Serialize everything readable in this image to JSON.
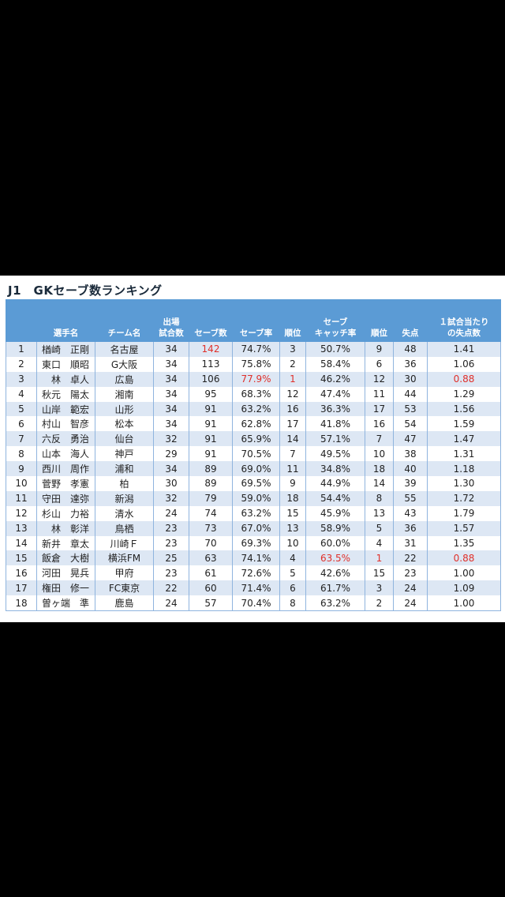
{
  "title": "J1　GKセーブ数ランキング",
  "headers": {
    "rank": "",
    "player": "選手名",
    "team": "チーム名",
    "games_1": "出場",
    "games_2": "試合数",
    "saves": "セーブ数",
    "save_rate": "セーブ率",
    "save_rate_rank": "順位",
    "catch_rate_1": "セーブ",
    "catch_rate_2": "キャッチ率",
    "catch_rate_rank": "順位",
    "goals_against": "失点",
    "gapg_1": "１試合当たり",
    "gapg_2": "の失点数"
  },
  "rows": [
    {
      "rank": "1",
      "player": "楢崎　正剛",
      "team": "名古屋",
      "games": "34",
      "saves": "142",
      "save_rate": "74.7%",
      "save_rate_rank": "3",
      "catch_rate": "50.7%",
      "catch_rate_rank": "9",
      "goals_against": "48",
      "gapg": "1.41"
    },
    {
      "rank": "2",
      "player": "東口　順昭",
      "team": "G大阪",
      "games": "34",
      "saves": "113",
      "save_rate": "75.8%",
      "save_rate_rank": "2",
      "catch_rate": "58.4%",
      "catch_rate_rank": "6",
      "goals_against": "36",
      "gapg": "1.06"
    },
    {
      "rank": "3",
      "player": "　林　卓人",
      "team": "広島",
      "games": "34",
      "saves": "106",
      "save_rate": "77.9%",
      "save_rate_rank": "1",
      "catch_rate": "46.2%",
      "catch_rate_rank": "12",
      "goals_against": "30",
      "gapg": "0.88"
    },
    {
      "rank": "4",
      "player": "秋元　陽太",
      "team": "湘南",
      "games": "34",
      "saves": "95",
      "save_rate": "68.3%",
      "save_rate_rank": "12",
      "catch_rate": "47.4%",
      "catch_rate_rank": "11",
      "goals_against": "44",
      "gapg": "1.29"
    },
    {
      "rank": "5",
      "player": "山岸　範宏",
      "team": "山形",
      "games": "34",
      "saves": "91",
      "save_rate": "63.2%",
      "save_rate_rank": "16",
      "catch_rate": "36.3%",
      "catch_rate_rank": "17",
      "goals_against": "53",
      "gapg": "1.56"
    },
    {
      "rank": "6",
      "player": "村山　智彦",
      "team": "松本",
      "games": "34",
      "saves": "91",
      "save_rate": "62.8%",
      "save_rate_rank": "17",
      "catch_rate": "41.8%",
      "catch_rate_rank": "16",
      "goals_against": "54",
      "gapg": "1.59"
    },
    {
      "rank": "7",
      "player": "六反　勇治",
      "team": "仙台",
      "games": "32",
      "saves": "91",
      "save_rate": "65.9%",
      "save_rate_rank": "14",
      "catch_rate": "57.1%",
      "catch_rate_rank": "7",
      "goals_against": "47",
      "gapg": "1.47"
    },
    {
      "rank": "8",
      "player": "山本　海人",
      "team": "神戸",
      "games": "29",
      "saves": "91",
      "save_rate": "70.5%",
      "save_rate_rank": "7",
      "catch_rate": "49.5%",
      "catch_rate_rank": "10",
      "goals_against": "38",
      "gapg": "1.31"
    },
    {
      "rank": "9",
      "player": "西川　周作",
      "team": "浦和",
      "games": "34",
      "saves": "89",
      "save_rate": "69.0%",
      "save_rate_rank": "11",
      "catch_rate": "34.8%",
      "catch_rate_rank": "18",
      "goals_against": "40",
      "gapg": "1.18"
    },
    {
      "rank": "10",
      "player": "菅野　孝憲",
      "team": "柏",
      "games": "30",
      "saves": "89",
      "save_rate": "69.5%",
      "save_rate_rank": "9",
      "catch_rate": "44.9%",
      "catch_rate_rank": "14",
      "goals_against": "39",
      "gapg": "1.30"
    },
    {
      "rank": "11",
      "player": "守田　達弥",
      "team": "新潟",
      "games": "32",
      "saves": "79",
      "save_rate": "59.0%",
      "save_rate_rank": "18",
      "catch_rate": "54.4%",
      "catch_rate_rank": "8",
      "goals_against": "55",
      "gapg": "1.72"
    },
    {
      "rank": "12",
      "player": "杉山　力裕",
      "team": "清水",
      "games": "24",
      "saves": "74",
      "save_rate": "63.2%",
      "save_rate_rank": "15",
      "catch_rate": "45.9%",
      "catch_rate_rank": "13",
      "goals_against": "43",
      "gapg": "1.79"
    },
    {
      "rank": "13",
      "player": "　林　彰洋",
      "team": "鳥栖",
      "games": "23",
      "saves": "73",
      "save_rate": "67.0%",
      "save_rate_rank": "13",
      "catch_rate": "58.9%",
      "catch_rate_rank": "5",
      "goals_against": "36",
      "gapg": "1.57"
    },
    {
      "rank": "14",
      "player": "新井　章太",
      "team": "川崎Ｆ",
      "games": "23",
      "saves": "70",
      "save_rate": "69.3%",
      "save_rate_rank": "10",
      "catch_rate": "60.0%",
      "catch_rate_rank": "4",
      "goals_against": "31",
      "gapg": "1.35"
    },
    {
      "rank": "15",
      "player": "飯倉　大樹",
      "team": "横浜FM",
      "games": "25",
      "saves": "63",
      "save_rate": "74.1%",
      "save_rate_rank": "4",
      "catch_rate": "63.5%",
      "catch_rate_rank": "1",
      "goals_against": "22",
      "gapg": "0.88"
    },
    {
      "rank": "16",
      "player": "河田　晃兵",
      "team": "甲府",
      "games": "23",
      "saves": "61",
      "save_rate": "72.6%",
      "save_rate_rank": "5",
      "catch_rate": "42.6%",
      "catch_rate_rank": "15",
      "goals_against": "23",
      "gapg": "1.00"
    },
    {
      "rank": "17",
      "player": "権田　修一",
      "team": "FC東京",
      "games": "22",
      "saves": "60",
      "save_rate": "71.4%",
      "save_rate_rank": "6",
      "catch_rate": "61.7%",
      "catch_rate_rank": "3",
      "goals_against": "24",
      "gapg": "1.09"
    },
    {
      "rank": "18",
      "player": "曽ヶ端　準",
      "team": "鹿島",
      "games": "24",
      "saves": "57",
      "save_rate": "70.4%",
      "save_rate_rank": "8",
      "catch_rate": "63.2%",
      "catch_rate_rank": "2",
      "goals_against": "24",
      "gapg": "1.00"
    }
  ],
  "highlight_color": "#e0302a",
  "highlights": [
    {
      "row": 0,
      "field": "saves"
    },
    {
      "row": 2,
      "field": "save_rate"
    },
    {
      "row": 2,
      "field": "save_rate_rank"
    },
    {
      "row": 2,
      "field": "gapg"
    },
    {
      "row": 14,
      "field": "catch_rate"
    },
    {
      "row": 14,
      "field": "catch_rate_rank"
    },
    {
      "row": 14,
      "field": "gapg"
    }
  ]
}
